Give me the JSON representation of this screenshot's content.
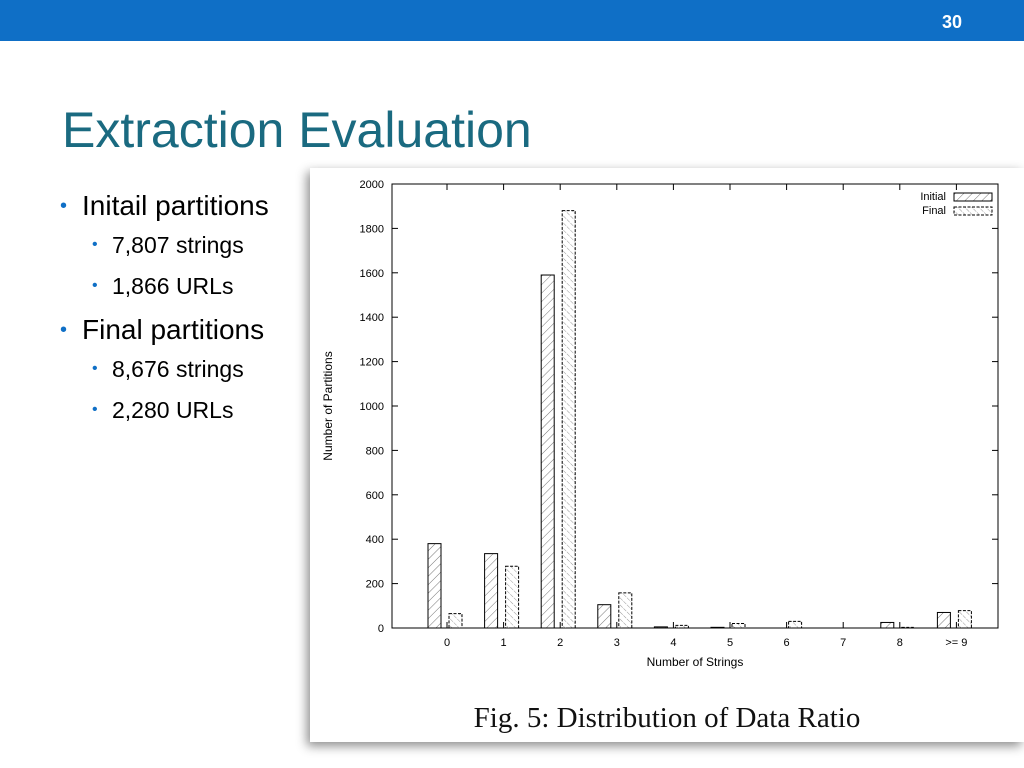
{
  "slide": {
    "number": "30",
    "title": "Extraction Evaluation",
    "accent_color": "#0f6fc6",
    "title_color": "#1a6a80"
  },
  "bullets": [
    {
      "text": "Initail partitions",
      "children": [
        "7,807 strings",
        "1,866 URLs"
      ]
    },
    {
      "text": "Final partitions",
      "children": [
        "8,676 strings",
        "2,280 URLs"
      ]
    }
  ],
  "figure": {
    "caption": "Fig. 5: Distribution of Data Ratio"
  },
  "chart_data": {
    "type": "bar",
    "xlabel": "Number of Strings",
    "ylabel": "Number of Partitions",
    "ylim": [
      0,
      2000
    ],
    "yticks": [
      0,
      200,
      400,
      600,
      800,
      1000,
      1200,
      1400,
      1600,
      1800,
      2000
    ],
    "categories": [
      "0",
      "1",
      "2",
      "3",
      "4",
      "5",
      "6",
      "7",
      "8",
      ">= 9"
    ],
    "series": [
      {
        "name": "Initial",
        "values": [
          380,
          335,
          1590,
          105,
          5,
          3,
          0,
          0,
          25,
          70
        ]
      },
      {
        "name": "Final",
        "values": [
          65,
          278,
          1880,
          158,
          12,
          20,
          30,
          0,
          3,
          78
        ]
      }
    ],
    "legend": "top-right",
    "grid": false
  }
}
